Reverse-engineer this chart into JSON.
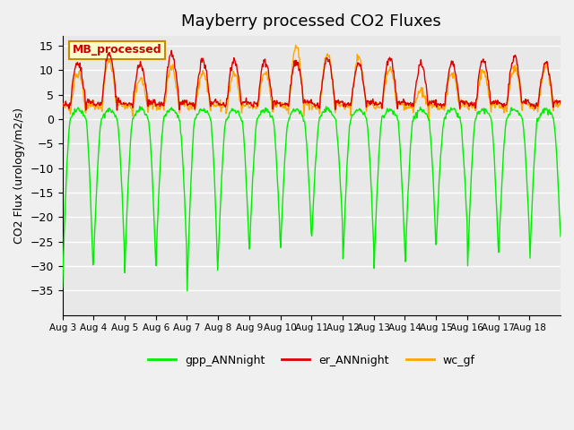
{
  "title": "Mayberry processed CO2 Fluxes",
  "ylabel": "CO2 Flux (urology/m2/s)",
  "ylim": [
    -40,
    17
  ],
  "yticks": [
    -35,
    -30,
    -25,
    -20,
    -15,
    -10,
    -5,
    0,
    5,
    10,
    15
  ],
  "xlabel_dates": [
    "Aug 3",
    "Aug 4",
    "Aug 5",
    "Aug 6",
    "Aug 7",
    "Aug 8",
    "Aug 9",
    "Aug 10",
    "Aug 11",
    "Aug 12",
    "Aug 13",
    "Aug 14",
    "Aug 15",
    "Aug 16",
    "Aug 17",
    "Aug 18"
  ],
  "color_gpp": "#00ee00",
  "color_er": "#dd0000",
  "color_wc": "#ffa500",
  "plot_bg_color": "#e8e8e8",
  "fig_bg_color": "#f0f0f0",
  "legend_label": "MB_processed",
  "legend_bg": "#ffffcc",
  "legend_border": "#cc8800",
  "title_fontsize": 13,
  "num_days": 16,
  "points_per_day": 48,
  "gpp_mins": [
    -34,
    -29,
    -31,
    -30,
    -35,
    -28,
    -27,
    -26,
    -24,
    -29,
    -30,
    -29,
    -24,
    -30,
    -27,
    -28
  ],
  "er_maxs": [
    9,
    11,
    9,
    11,
    9.5,
    9.5,
    9.5,
    9.5,
    10,
    9,
    10,
    8.5,
    9,
    9.5,
    10,
    9
  ],
  "wc_maxs": [
    8,
    10.5,
    7,
    9,
    8,
    8,
    8,
    13,
    12,
    11,
    9,
    4.5,
    8,
    8.5,
    9,
    9
  ]
}
